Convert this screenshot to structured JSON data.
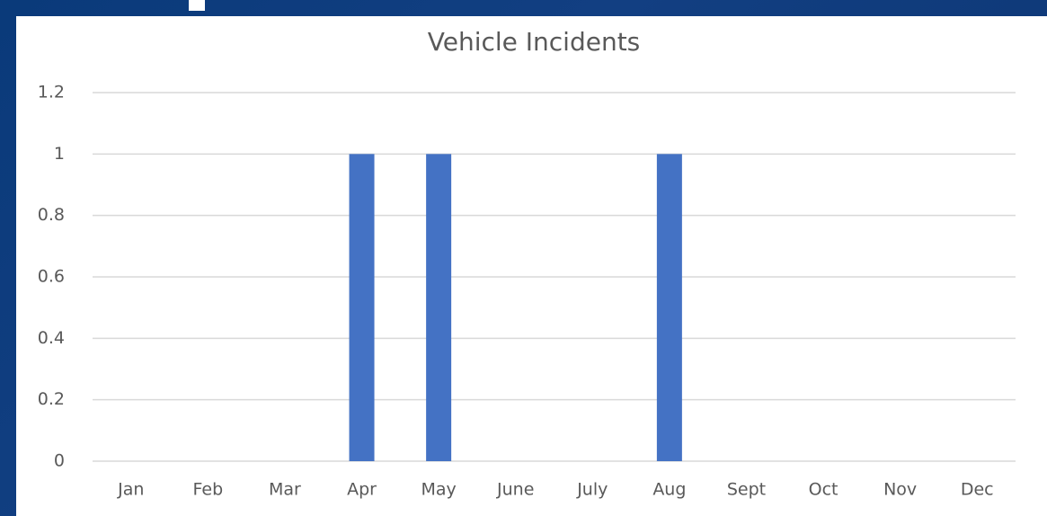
{
  "chart_data": {
    "type": "bar",
    "title": "Vehicle Incidents",
    "categories": [
      "Jan",
      "Feb",
      "Mar",
      "Apr",
      "May",
      "June",
      "July",
      "Aug",
      "Sept",
      "Oct",
      "Nov",
      "Dec"
    ],
    "values": [
      0,
      0,
      0,
      1,
      1,
      0,
      0,
      1,
      0,
      0,
      0,
      0
    ],
    "color": "#4472c4",
    "ylim": [
      0,
      1.2
    ],
    "yticks": [
      0,
      0.2,
      0.4,
      0.6,
      0.8,
      1,
      1.2
    ],
    "grid": true
  }
}
